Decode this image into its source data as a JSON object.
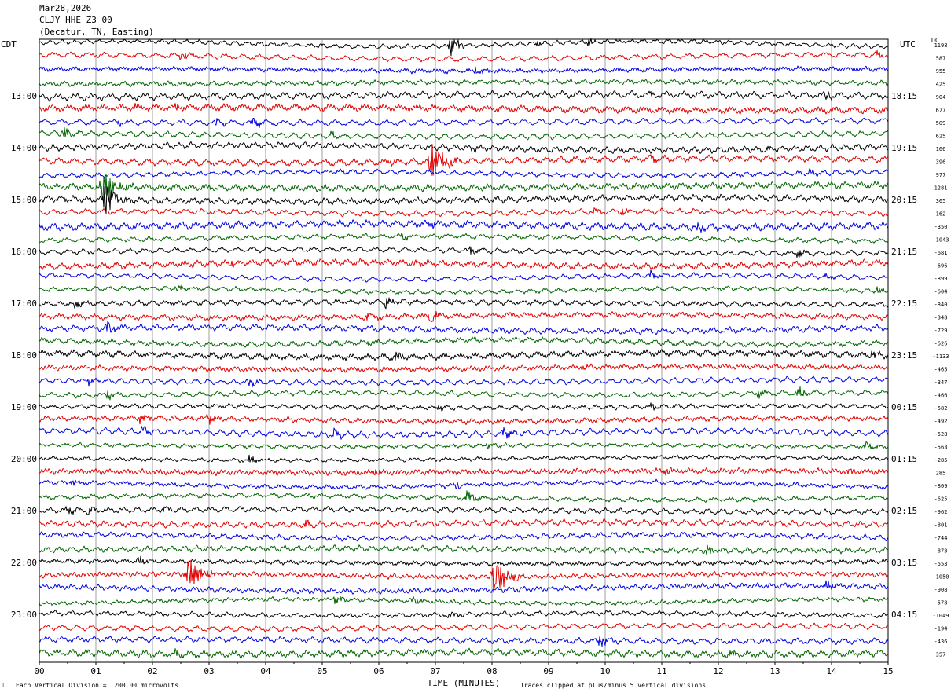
{
  "header": {
    "date": "Mar28,2026",
    "station": "CLJY HHE Z3 00",
    "location": "(Decatur, TN, Easting)"
  },
  "left_zone_label": "CDT",
  "right_zone_label": "UTC",
  "dc_label": "DC",
  "footer": {
    "scale_note": "Each Vertical Division =  200.00 microvolts",
    "clip_note": "Traces clipped at plus/minus 5 vertical divisions",
    "corner_mark": "⊺"
  },
  "chart_data": {
    "type": "line",
    "title": "",
    "xlabel": "TIME (MINUTES)",
    "ylabel": "",
    "xlim": [
      0,
      15
    ],
    "x_ticks": [
      "00",
      "01",
      "02",
      "03",
      "04",
      "05",
      "06",
      "07",
      "08",
      "09",
      "10",
      "11",
      "12",
      "13",
      "14",
      "15"
    ],
    "trace_count": 48,
    "trace_colors": [
      "#000000",
      "#e00000",
      "#0000e0",
      "#006400"
    ],
    "left_time_labels": [
      {
        "row": 4,
        "label": "13:00"
      },
      {
        "row": 8,
        "label": "14:00"
      },
      {
        "row": 12,
        "label": "15:00"
      },
      {
        "row": 16,
        "label": "16:00"
      },
      {
        "row": 20,
        "label": "17:00"
      },
      {
        "row": 24,
        "label": "18:00"
      },
      {
        "row": 28,
        "label": "19:00"
      },
      {
        "row": 32,
        "label": "20:00"
      },
      {
        "row": 36,
        "label": "21:00"
      },
      {
        "row": 40,
        "label": "22:00"
      },
      {
        "row": 44,
        "label": "23:00"
      }
    ],
    "right_time_labels": [
      {
        "row": 4,
        "label": "18:15"
      },
      {
        "row": 8,
        "label": "19:15"
      },
      {
        "row": 12,
        "label": "20:15"
      },
      {
        "row": 16,
        "label": "21:15"
      },
      {
        "row": 20,
        "label": "22:15"
      },
      {
        "row": 24,
        "label": "23:15"
      },
      {
        "row": 28,
        "label": "00:15"
      },
      {
        "row": 32,
        "label": "01:15"
      },
      {
        "row": 36,
        "label": "02:15"
      },
      {
        "row": 40,
        "label": "03:15"
      },
      {
        "row": 44,
        "label": "04:15"
      }
    ],
    "dc_offsets": [
      "1198",
      "587",
      "955",
      "425",
      "904",
      "677",
      "509",
      "625",
      "166",
      "396",
      "977",
      "1281",
      "365",
      "162",
      "-350",
      "-1043",
      "-681",
      "-696",
      "-899",
      "-604",
      "-840",
      "-348",
      "-729",
      "-626",
      "-1133",
      "-465",
      "-347",
      "-466",
      "-582",
      "-492",
      "-528",
      "-563",
      "-285",
      "285",
      "-809",
      "-625",
      "-962",
      "-801",
      "-744",
      "-873",
      "-553",
      "-1050",
      "-908",
      "-578",
      "-1049",
      "-194",
      "-436",
      "357"
    ],
    "events": [
      {
        "row": 0,
        "min": 7.25,
        "amp": 14
      },
      {
        "row": 0,
        "min": 9.7,
        "amp": 5
      },
      {
        "row": 0,
        "min": 8.8,
        "amp": 4
      },
      {
        "row": 1,
        "min": 2.5,
        "amp": 7
      },
      {
        "row": 1,
        "min": 14.8,
        "amp": 5
      },
      {
        "row": 2,
        "min": 7.7,
        "amp": 5
      },
      {
        "row": 2,
        "min": 12.2,
        "amp": 4
      },
      {
        "row": 4,
        "min": 13.9,
        "amp": 7
      },
      {
        "row": 4,
        "min": 10.8,
        "amp": 3
      },
      {
        "row": 5,
        "min": 2.4,
        "amp": 5
      },
      {
        "row": 5,
        "min": 1.65,
        "amp": 4
      },
      {
        "row": 6,
        "min": 3.75,
        "amp": 8
      },
      {
        "row": 6,
        "min": 3.1,
        "amp": 6
      },
      {
        "row": 6,
        "min": 1.4,
        "amp": 4
      },
      {
        "row": 7,
        "min": 0.4,
        "amp": 10
      },
      {
        "row": 7,
        "min": 5.15,
        "amp": 5
      },
      {
        "row": 8,
        "min": 12.8,
        "amp": 6
      },
      {
        "row": 8,
        "min": 7.65,
        "amp": 4
      },
      {
        "row": 9,
        "min": 6.9,
        "amp": 26
      },
      {
        "row": 9,
        "min": 6.2,
        "amp": 6
      },
      {
        "row": 9,
        "min": 10.8,
        "amp": 5
      },
      {
        "row": 10,
        "min": 13.6,
        "amp": 5
      },
      {
        "row": 11,
        "min": 1.1,
        "amp": 24
      },
      {
        "row": 12,
        "min": 1.15,
        "amp": 22
      },
      {
        "row": 12,
        "min": 0.4,
        "amp": 5
      },
      {
        "row": 13,
        "min": 10.3,
        "amp": 5
      },
      {
        "row": 13,
        "min": 9.8,
        "amp": 4
      },
      {
        "row": 14,
        "min": 11.6,
        "amp": 10
      },
      {
        "row": 14,
        "min": 6.9,
        "amp": 5
      },
      {
        "row": 15,
        "min": 6.4,
        "amp": 5
      },
      {
        "row": 16,
        "min": 7.6,
        "amp": 6
      },
      {
        "row": 16,
        "min": 13.4,
        "amp": 6
      },
      {
        "row": 17,
        "min": 6.6,
        "amp": 5
      },
      {
        "row": 17,
        "min": 3.4,
        "amp": 5
      },
      {
        "row": 18,
        "min": 10.8,
        "amp": 5
      },
      {
        "row": 18,
        "min": 13.9,
        "amp": 5
      },
      {
        "row": 19,
        "min": 2.4,
        "amp": 5
      },
      {
        "row": 19,
        "min": 14.8,
        "amp": 6
      },
      {
        "row": 20,
        "min": 0.6,
        "amp": 8
      },
      {
        "row": 20,
        "min": 6.1,
        "amp": 8
      },
      {
        "row": 21,
        "min": 6.9,
        "amp": 10
      },
      {
        "row": 21,
        "min": 5.8,
        "amp": 6
      },
      {
        "row": 22,
        "min": 1.2,
        "amp": 8
      },
      {
        "row": 23,
        "min": 5.8,
        "amp": 4
      },
      {
        "row": 24,
        "min": 6.3,
        "amp": 6
      },
      {
        "row": 24,
        "min": 14.7,
        "amp": 7
      },
      {
        "row": 25,
        "min": 9.6,
        "amp": 5
      },
      {
        "row": 26,
        "min": 3.7,
        "amp": 7
      },
      {
        "row": 26,
        "min": 0.85,
        "amp": 5
      },
      {
        "row": 27,
        "min": 1.2,
        "amp": 7
      },
      {
        "row": 27,
        "min": 13.4,
        "amp": 8
      },
      {
        "row": 27,
        "min": 12.7,
        "amp": 6
      },
      {
        "row": 28,
        "min": 10.8,
        "amp": 5
      },
      {
        "row": 28,
        "min": 7.05,
        "amp": 5
      },
      {
        "row": 29,
        "min": 1.75,
        "amp": 7
      },
      {
        "row": 29,
        "min": 2.95,
        "amp": 8
      },
      {
        "row": 30,
        "min": 8.2,
        "amp": 8
      },
      {
        "row": 30,
        "min": 1.8,
        "amp": 6
      },
      {
        "row": 30,
        "min": 5.2,
        "amp": 6
      },
      {
        "row": 31,
        "min": 14.6,
        "amp": 6
      },
      {
        "row": 31,
        "min": 7.9,
        "amp": 5
      },
      {
        "row": 32,
        "min": 3.7,
        "amp": 6
      },
      {
        "row": 33,
        "min": 5.9,
        "amp": 5
      },
      {
        "row": 33,
        "min": 11.05,
        "amp": 5
      },
      {
        "row": 33,
        "min": 14.3,
        "amp": 4
      },
      {
        "row": 34,
        "min": 7.35,
        "amp": 6
      },
      {
        "row": 34,
        "min": 0.55,
        "amp": 4
      },
      {
        "row": 35,
        "min": 7.55,
        "amp": 8
      },
      {
        "row": 36,
        "min": 0.5,
        "amp": 6
      },
      {
        "row": 36,
        "min": 0.85,
        "amp": 6
      },
      {
        "row": 36,
        "min": 2.2,
        "amp": 5
      },
      {
        "row": 37,
        "min": 4.7,
        "amp": 6
      },
      {
        "row": 39,
        "min": 11.8,
        "amp": 7
      },
      {
        "row": 40,
        "min": 1.75,
        "amp": 6
      },
      {
        "row": 41,
        "min": 2.6,
        "amp": 24
      },
      {
        "row": 41,
        "min": 8.0,
        "amp": 28
      },
      {
        "row": 42,
        "min": 13.9,
        "amp": 7
      },
      {
        "row": 43,
        "min": 5.2,
        "amp": 6
      },
      {
        "row": 43,
        "min": 6.6,
        "amp": 5
      },
      {
        "row": 44,
        "min": 7.2,
        "amp": 6
      },
      {
        "row": 46,
        "min": 9.9,
        "amp": 9
      },
      {
        "row": 47,
        "min": 2.4,
        "amp": 5
      },
      {
        "row": 47,
        "min": 12.2,
        "amp": 5
      }
    ]
  }
}
